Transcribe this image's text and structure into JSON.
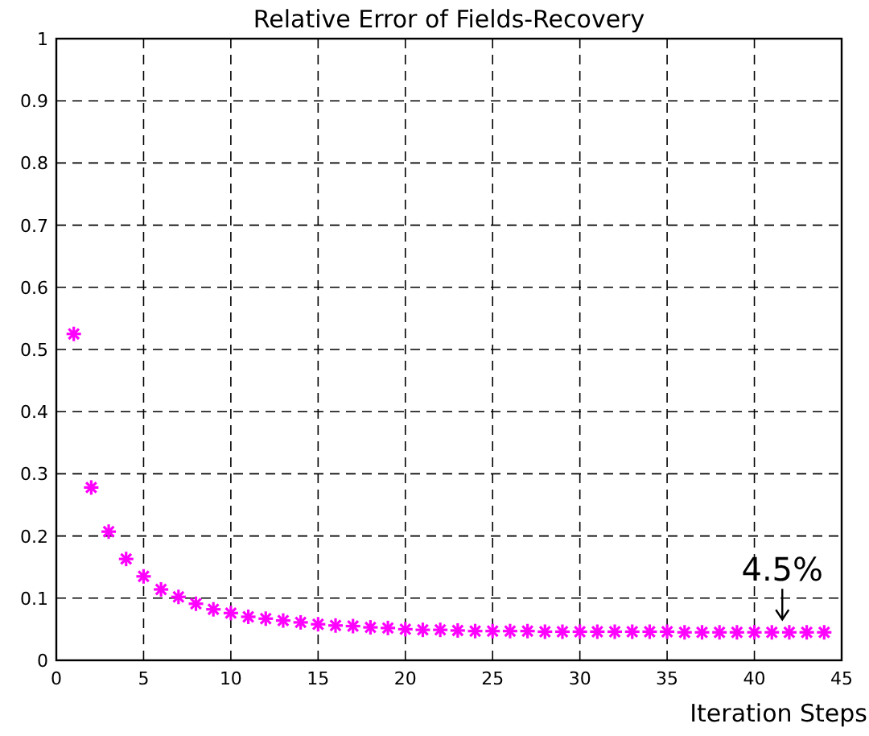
{
  "chart_data": {
    "type": "scatter",
    "title": "Relative Error of Fields-Recovery",
    "xlabel": "Iteration Steps",
    "x": [
      1,
      2,
      3,
      4,
      5,
      6,
      7,
      8,
      9,
      10,
      11,
      12,
      13,
      14,
      15,
      16,
      17,
      18,
      19,
      20,
      21,
      22,
      23,
      24,
      25,
      26,
      27,
      28,
      29,
      30,
      31,
      32,
      33,
      34,
      35,
      36,
      37,
      38,
      39,
      40,
      41,
      42,
      43,
      44
    ],
    "series": [
      {
        "color": "#ff00ff",
        "values": [
          0.525,
          0.278,
          0.207,
          0.163,
          0.135,
          0.114,
          0.102,
          0.091,
          0.082,
          0.076,
          0.07,
          0.067,
          0.064,
          0.061,
          0.058,
          0.056,
          0.055,
          0.053,
          0.052,
          0.05,
          0.049,
          0.049,
          0.048,
          0.047,
          0.047,
          0.047,
          0.047,
          0.046,
          0.046,
          0.046,
          0.046,
          0.046,
          0.046,
          0.046,
          0.046,
          0.045,
          0.045,
          0.045,
          0.045,
          0.045,
          0.045,
          0.045,
          0.045,
          0.045
        ]
      }
    ],
    "xlim": [
      0,
      45
    ],
    "xticks": [
      0,
      5,
      10,
      15,
      20,
      25,
      30,
      35,
      40,
      45
    ],
    "ylim": [
      0,
      1
    ],
    "yticks": [
      0,
      0.1,
      0.2,
      0.3,
      0.4,
      0.5,
      0.6,
      0.7,
      0.8,
      0.9,
      1
    ],
    "grid": true,
    "marker": "cross",
    "annotations": [
      {
        "text": "4.5%",
        "x": 41.6,
        "y": 0.045
      }
    ]
  }
}
